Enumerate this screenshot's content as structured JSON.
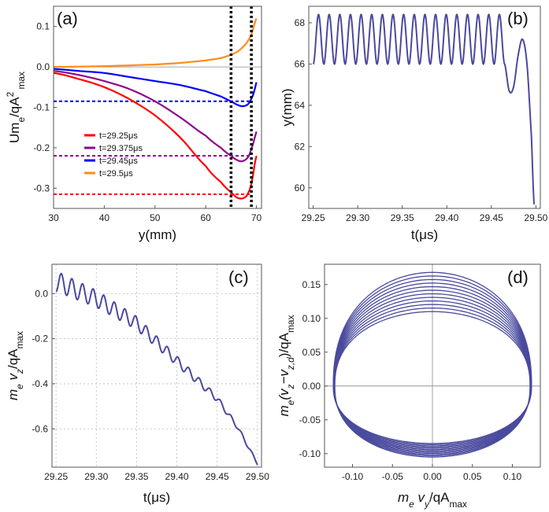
{
  "chart_data": [
    {
      "type": "line",
      "panel_label": "(a)",
      "xlabel": "y(mm)",
      "ylabel": "Um_e/qA²_max",
      "ylabel_main": "Um",
      "ylabel_sub": "e",
      "ylabel_mid": "/qA",
      "ylabel_sup": "2",
      "ylabel_sub2": "max",
      "xlim": [
        30,
        71
      ],
      "ylim": [
        -0.35,
        0.15
      ],
      "xticks": [
        30,
        40,
        50,
        60,
        70
      ],
      "yticks": [
        0.1,
        0.0,
        -0.1,
        -0.2,
        -0.3
      ],
      "ytick_labels": [
        "0.1",
        "0.0",
        "-0.1",
        "-0.2",
        "-0.3"
      ],
      "vlines": [
        65,
        69
      ],
      "series": [
        {
          "name": "t=29.25μs",
          "color": "#ff0000",
          "x": [
            30,
            35,
            40,
            45,
            50,
            55,
            60,
            63,
            65,
            66.5,
            68,
            69,
            70
          ],
          "y": [
            -0.015,
            -0.03,
            -0.05,
            -0.08,
            -0.12,
            -0.175,
            -0.245,
            -0.285,
            -0.31,
            -0.325,
            -0.32,
            -0.29,
            -0.22
          ],
          "hline": -0.315
        },
        {
          "name": "t=29.375μs",
          "color": "#8b0a8b",
          "x": [
            30,
            35,
            40,
            45,
            50,
            55,
            60,
            63,
            65,
            66.5,
            67.5,
            68.5,
            69.5,
            70
          ],
          "y": [
            -0.01,
            -0.02,
            -0.035,
            -0.055,
            -0.085,
            -0.125,
            -0.17,
            -0.2,
            -0.22,
            -0.232,
            -0.232,
            -0.22,
            -0.185,
            -0.16
          ],
          "hline": -0.22
        },
        {
          "name": "t=29.45μs",
          "color": "#0000ff",
          "x": [
            30,
            35,
            40,
            45,
            50,
            55,
            60,
            63,
            65,
            66.5,
            67.5,
            68.5,
            69.5,
            70
          ],
          "y": [
            -0.005,
            -0.01,
            -0.015,
            -0.025,
            -0.035,
            -0.045,
            -0.06,
            -0.073,
            -0.085,
            -0.095,
            -0.097,
            -0.09,
            -0.065,
            -0.038
          ],
          "hline": -0.085
        },
        {
          "name": "t=29.5μs",
          "color": "#ff8c1a",
          "x": [
            30,
            40,
            50,
            55,
            60,
            63,
            65,
            66.5,
            68,
            69,
            70
          ],
          "y": [
            0.0,
            0.002,
            0.006,
            0.01,
            0.016,
            0.022,
            0.03,
            0.04,
            0.058,
            0.08,
            0.12
          ],
          "hline": null
        }
      ]
    },
    {
      "type": "line",
      "panel_label": "(b)",
      "xlabel": "t(μs)",
      "ylabel": "y(mm)",
      "xlim": [
        29.245,
        29.505
      ],
      "ylim": [
        59,
        68.8
      ],
      "xticks": [
        29.25,
        29.3,
        29.35,
        29.4,
        29.45,
        29.5
      ],
      "xtick_labels": [
        "29.25",
        "29.30",
        "29.35",
        "29.40",
        "29.45",
        "29.50"
      ],
      "yticks": [
        60,
        62,
        64,
        66,
        68
      ],
      "color": "#4a4a9e",
      "osc": {
        "t_start": 29.25,
        "t_end": 29.465,
        "y_low": 66.0,
        "y_high": 68.4,
        "periods": 18
      },
      "tail": {
        "t": [
          29.465,
          29.47,
          29.475,
          29.48,
          29.485,
          29.49,
          29.495,
          29.498
        ],
        "y": [
          66.0,
          64.7,
          64.9,
          66.4,
          67.2,
          66.0,
          62.5,
          59.2
        ]
      }
    },
    {
      "type": "line",
      "panel_label": "(c)",
      "xlabel": "t(μs)",
      "ylabel": "m_e v_z/qA_max",
      "ylabel_main": "m",
      "ylabel_sub": "e",
      "ylabel_mid": "v",
      "ylabel_sub2": "z",
      "ylabel_tail": "/qA",
      "ylabel_sub3": "max",
      "xlim": [
        29.245,
        29.505
      ],
      "ylim": [
        -0.77,
        0.13
      ],
      "xticks": [
        29.25,
        29.3,
        29.35,
        29.4,
        29.45,
        29.5
      ],
      "xtick_labels": [
        "29.25",
        "29.30",
        "29.35",
        "29.40",
        "29.45",
        "29.50"
      ],
      "yticks": [
        0.0,
        -0.2,
        -0.4,
        -0.6
      ],
      "ytick_labels": [
        "0.0",
        "-0.2",
        "-0.4",
        "-0.6"
      ],
      "color": "#4a4a9e",
      "trend": {
        "t": [
          29.25,
          29.3,
          29.35,
          29.4,
          29.45,
          29.475,
          29.5
        ],
        "y": [
          0.01,
          -0.06,
          -0.16,
          -0.32,
          -0.48,
          -0.6,
          -0.76
        ]
      },
      "osc_amp": 0.09,
      "periods": 19
    },
    {
      "type": "line",
      "panel_label": "(d)",
      "xlabel": "m_e v_y/qA_max",
      "ylabel": "m_e(v_z−v_z,d)/qA_max",
      "xlabel_main": "m",
      "xlabel_sub": "e",
      "xlabel_mid": "v",
      "xlabel_sub2": "y",
      "xlabel_tail": "/qA",
      "xlabel_sub3": "max",
      "ylabel_main": "m",
      "ylabel_sub": "e",
      "ylabel_mid": "(v",
      "ylabel_sub2": "z",
      "ylabel_mid2": "−v",
      "ylabel_sub3": "z,d",
      "ylabel_tail": ")/qA",
      "ylabel_sub4": "max",
      "xlim": [
        -0.135,
        0.135
      ],
      "ylim": [
        -0.12,
        0.18
      ],
      "xticks": [
        -0.1,
        -0.05,
        0.0,
        0.05,
        0.1
      ],
      "xtick_labels": [
        "-0.10",
        "-0.05",
        "0.00",
        "0.05",
        "0.10"
      ],
      "yticks": [
        0.15,
        0.1,
        0.05,
        0.0,
        -0.05,
        -0.1
      ],
      "ytick_labels": [
        "0.15",
        "0.10",
        "0.05",
        "0.00",
        "-0.05",
        "-0.10"
      ],
      "color": "#4a4a9e",
      "loops": {
        "count": 12,
        "x_amp": 0.124,
        "top_min": 0.11,
        "top_max": 0.168,
        "bot_min": -0.085,
        "bot_max": -0.105
      }
    }
  ]
}
